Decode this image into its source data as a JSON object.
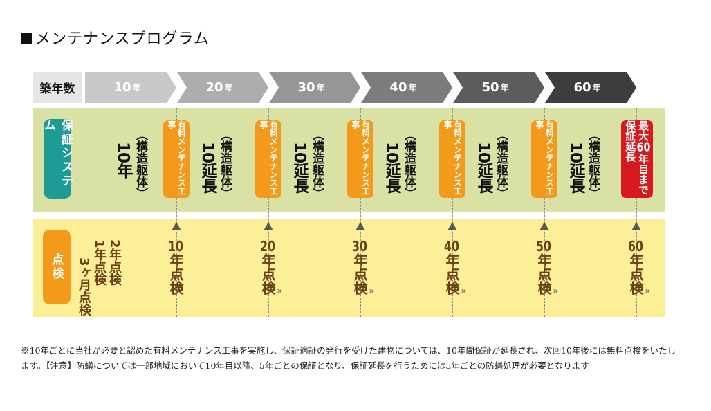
{
  "title": "メンテナンスプログラム",
  "header": {
    "label": "築年数",
    "years": [
      {
        "num": "10",
        "unit": "年",
        "color": "#c8c8c8"
      },
      {
        "num": "20",
        "unit": "年",
        "color": "#adadad"
      },
      {
        "num": "30",
        "unit": "年",
        "color": "#969696"
      },
      {
        "num": "40",
        "unit": "年",
        "color": "#7c7c7c"
      },
      {
        "num": "50",
        "unit": "年",
        "color": "#5c5c5c"
      },
      {
        "num": "60",
        "unit": "年",
        "color": "#3d3d3d"
      }
    ]
  },
  "warranty": {
    "label": "保証システム",
    "first_big": "10年",
    "first_small": "（構造躯体）",
    "extend_big": "10延長",
    "extend_small": "（構造躯体）",
    "maintenance": "有料メンテナンス工事",
    "max_label_1": "最大",
    "max_label_num": "60",
    "max_label_2": "年目まで保証延長"
  },
  "inspection": {
    "label": "点検",
    "early_1": "3ヶ月点検",
    "early_2": "1年点検",
    "early_3": "2年点検",
    "items": [
      {
        "num": "10",
        "text": "年点検",
        "asterisk": ""
      },
      {
        "num": "20",
        "text": "年点検",
        "asterisk": "※"
      },
      {
        "num": "30",
        "text": "年点検",
        "asterisk": "※"
      },
      {
        "num": "40",
        "text": "年点検",
        "asterisk": "※"
      },
      {
        "num": "50",
        "text": "年点検",
        "asterisk": "※"
      },
      {
        "num": "60",
        "text": "年点検",
        "asterisk": "※"
      }
    ]
  },
  "note": "※10年ごとに当社が必要と認めた有料メンテナンス工事を実施し、保証適証の発行を受けた建物については、10年間保証が延長され、次回10年後には無料点検をいたします。【注意】防蟻については一部地域において10年目以降、5年ごとの保証となり、保証延長を行うためには5年ごとの防蟻処理が必要となります。"
}
